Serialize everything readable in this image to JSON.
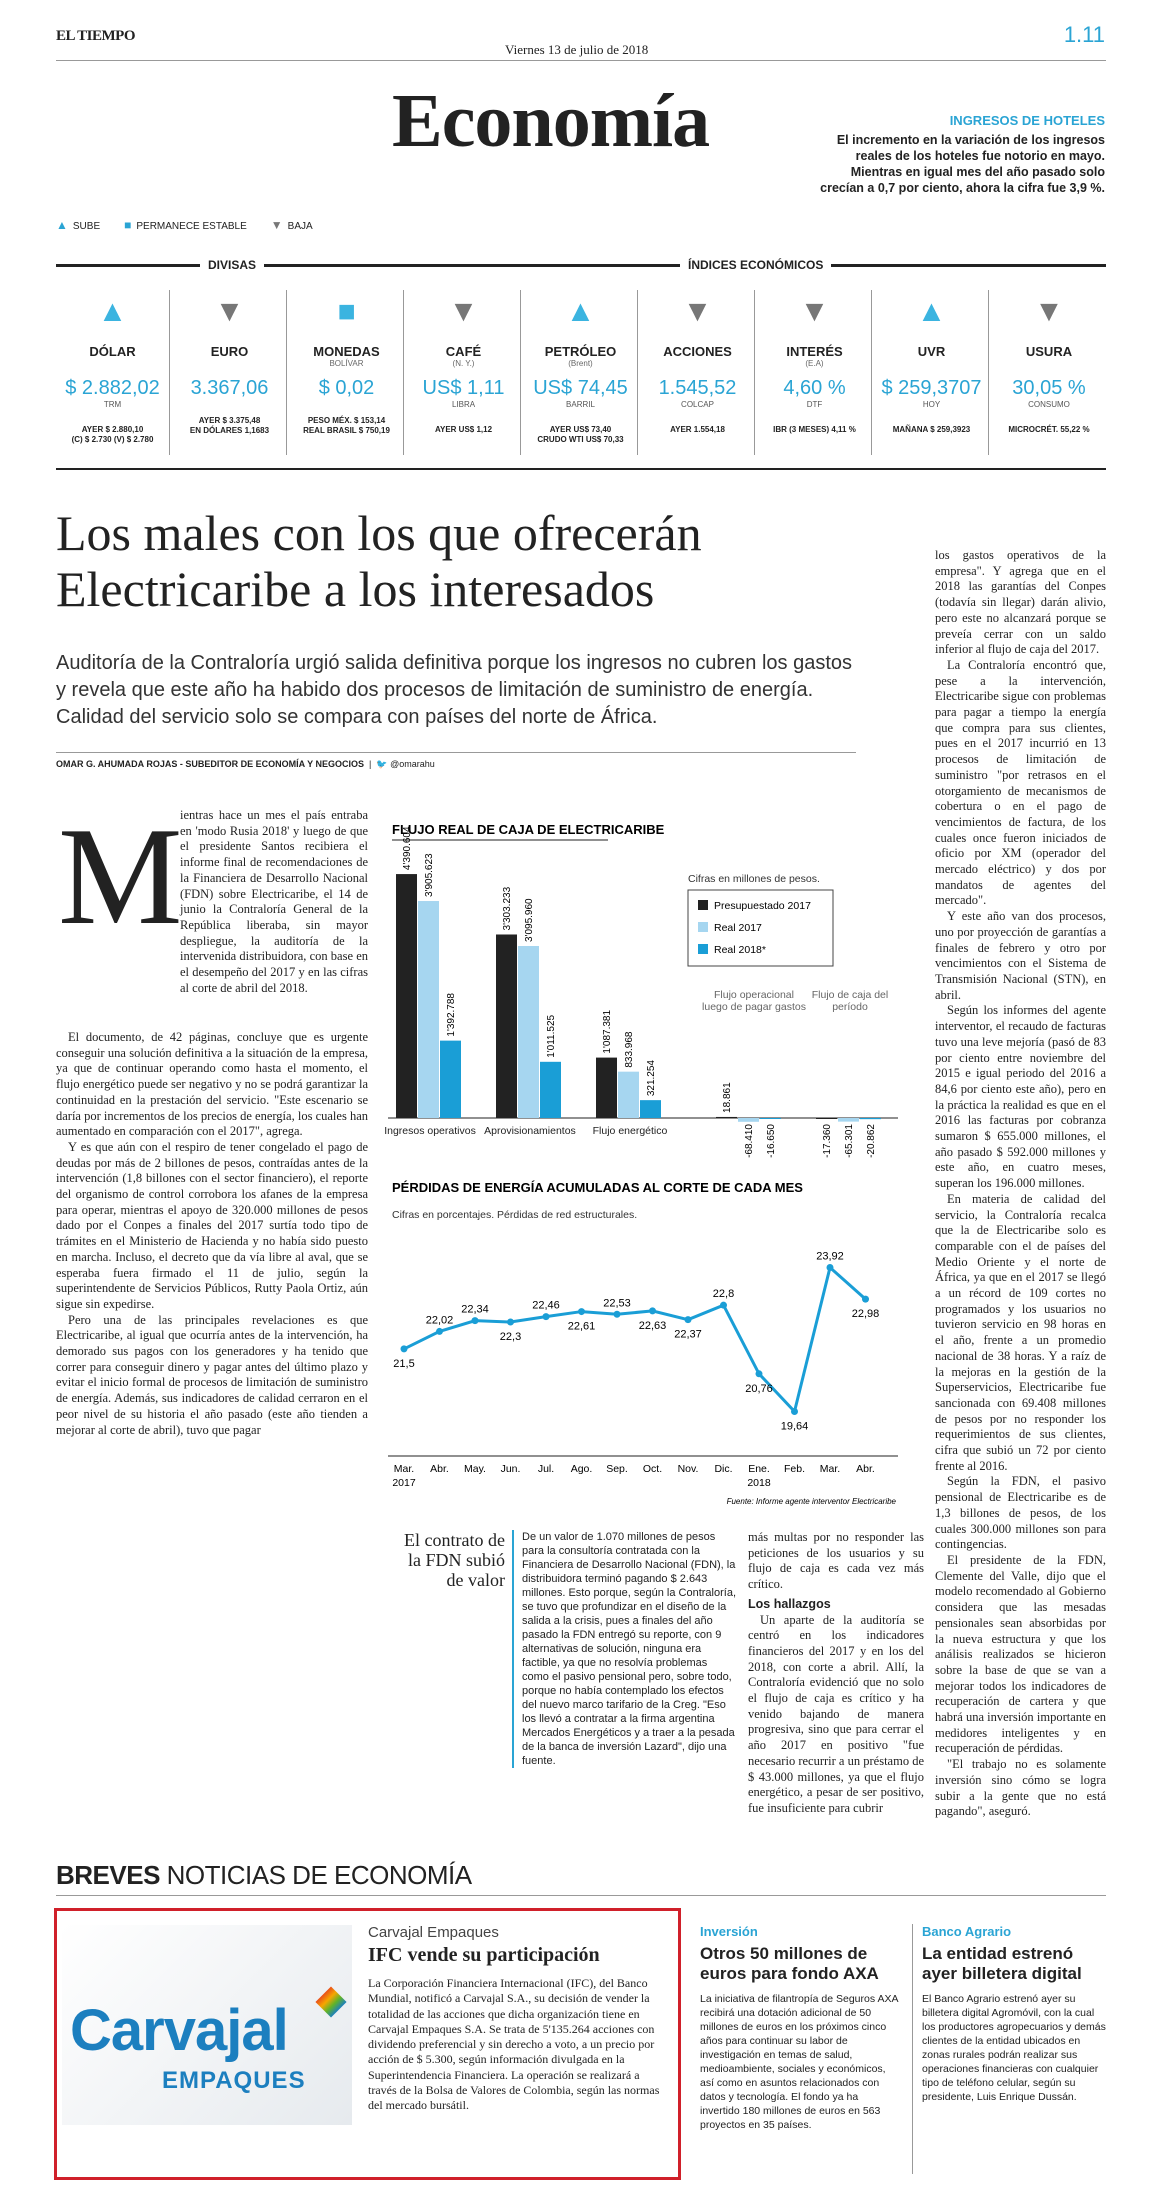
{
  "header": {
    "masthead": "EL TIEMPO",
    "date": "Viernes 13 de julio de 2018",
    "page_number": "1.11",
    "section": "Economía"
  },
  "hotel_box": {
    "title": "INGRESOS DE HOTELES",
    "text": "El incremento en la variación de los ingresos reales de los hoteles fue notorio en mayo. Mientras en igual mes del año pasado solo crecían a 0,7 por ciento, ahora la cifra fue 3,9 %."
  },
  "legend": {
    "up": "SUBE",
    "stable": "PERMANECE ESTABLE",
    "down": "BAJA"
  },
  "group_headers": {
    "divisas": "DIVISAS",
    "indices": "ÍNDICES ECONÓMICOS"
  },
  "indicators": [
    {
      "trend": "up",
      "name": "DÓLAR",
      "sub": "",
      "value": "$ 2.882,02",
      "unit": "TRM",
      "foot1": "AYER $ 2.880,10",
      "foot2": "(C) $ 2.730 (V) $ 2.780"
    },
    {
      "trend": "down",
      "name": "EURO",
      "sub": "",
      "value": "3.367,06",
      "unit": "",
      "foot1": "AYER $ 3.375,48",
      "foot2": "EN DÓLARES 1,1683"
    },
    {
      "trend": "stable",
      "name": "MONEDAS",
      "sub": "BOLÍVAR",
      "value": "$ 0,02",
      "unit": "",
      "foot1": "PESO MÉX. $ 153,14",
      "foot2": "REAL BRASIL $ 750,19"
    },
    {
      "trend": "down",
      "name": "CAFÉ",
      "sub": "(N. Y.)",
      "value": "US$ 1,11",
      "unit": "LIBRA",
      "foot1": "AYER US$ 1,12",
      "foot2": ""
    },
    {
      "trend": "up",
      "name": "PETRÓLEO",
      "sub": "(Brent)",
      "value": "US$ 74,45",
      "unit": "BARRIL",
      "foot1": "AYER US$ 73,40",
      "foot2": "CRUDO WTI US$ 70,33"
    },
    {
      "trend": "down",
      "name": "ACCIONES",
      "sub": "",
      "value": "1.545,52",
      "unit": "COLCAP",
      "foot1": "AYER 1.554,18",
      "foot2": ""
    },
    {
      "trend": "down",
      "name": "INTERÉS",
      "sub": "(E.A)",
      "value": "4,60 %",
      "unit": "DTF",
      "foot1": "IBR (3 MESES) 4,11 %",
      "foot2": ""
    },
    {
      "trend": "up",
      "name": "UVR",
      "sub": "",
      "value": "$ 259,3707",
      "unit": "HOY",
      "foot1": "MAÑANA $ 259,3923",
      "foot2": ""
    },
    {
      "trend": "down",
      "name": "USURA",
      "sub": "",
      "value": "30,05 %",
      "unit": "CONSUMO",
      "foot1": "MICROCRÉT. 55,22 %",
      "foot2": ""
    }
  ],
  "article": {
    "headline": "Los males con los que ofrecerán Electricaribe a los interesados",
    "deck": "Auditoría de la Contraloría urgió salida definitiva porque los ingresos no cubren los gastos y revela que este año ha habido dos procesos de limitación de suministro de energía. Calidad del servicio solo se compara con países del norte de África.",
    "byline": "OMAR G. AHUMADA ROJAS - SUBEDITOR DE ECONOMÍA Y NEGOCIOS",
    "twitter": "@omarahu",
    "dropcap": "M",
    "col1_top": "ientras hace un mes el país entraba en 'modo Rusia 2018' y luego de que el presidente Santos recibiera el informe final de recomendaciones de la Financiera de Desarrollo Nacional (FDN) sobre Electricaribe, el 14 de junio la Contraloría General de la República liberaba, sin mayor despliegue, la auditoría de la intervenida distribuidora, con base en el desempeño del 2017 y en las cifras al corte de abril del 2018.",
    "col1_p2": "El documento, de 42 páginas, concluye que es urgente conseguir una solución definitiva a la situación de la empresa, ya que de continuar operando como hasta el momento, el flujo energético puede ser negativo y no se podrá garantizar la continuidad en la prestación del servicio. \"Este escenario se daría por incrementos de los precios de energía, los cuales han aumentado en comparación con el 2017\", agrega.",
    "col1_p3": "Y es que aún con el respiro de tener congelado el pago de deudas por más de 2 billones de pesos, contraídas antes de la intervención (1,8 billones con el sector financiero), el reporte del organismo de control corrobora los afanes de la empresa para operar, mientras el apoyo de 320.000 millones de pesos dado por el Conpes a finales del 2017 surtía todo tipo de trámites en el Ministerio de Hacienda y no había sido puesto en marcha. Incluso, el decreto que da vía libre al aval, que se esperaba fuera firmado el 11 de julio, según la superintendente de Servicios Públicos, Rutty Paola Ortiz, aún sigue sin expedirse.",
    "col1_p4": "Pero una de las principales revelaciones es que Electricaribe, al igual que ocurría antes de la intervención, ha demorado sus pagos con los generadores y ha tenido que correr para conseguir dinero y pagar antes del último plazo y evitar el inicio formal de procesos de limitación de suministro de energía. Además, sus indicadores de calidad cerraron en el peor nivel de su historia el año pasado (este año tienden a mejorar al corte de abril), tuvo que pagar",
    "colR_p1": "los gastos operativos de la empresa\". Y agrega que en el 2018 las garantías del Conpes (todavía sin llegar) darán alivio, pero este no alcanzará porque se preveía cerrar con un saldo inferior al flujo de caja del 2017.",
    "colR_p2": "La Contraloría encontró que, pese a la intervención, Electricaribe sigue con problemas para pagar a tiempo la energía que compra para sus clientes, pues en el 2017 incurrió en 13 procesos de limitación de suministro \"por retrasos en el otorgamiento de mecanismos de cobertura o en el pago de vencimientos de factura, de los cuales once fueron iniciados de oficio por XM (operador del mercado eléctrico) y dos por mandatos de agentes del mercado\".",
    "colR_p3": "Y este año van dos procesos, uno por proyección de garantías a finales de febrero y otro por vencimientos con el Sistema de Transmisión Nacional (STN), en abril.",
    "colR_p4": "Según los informes del agente interventor, el recaudo de facturas tuvo una leve mejoría (pasó de 83 por ciento entre noviembre del 2015 e igual periodo del 2016 a 84,6 por ciento este año), pero en la práctica la realidad es que en el 2016 las facturas por cobranza sumaron $ 655.000 millones, el año pasado $ 592.000 millones y este año, en cuatro meses, superan los 196.000 millones.",
    "colR_p5": "En materia de calidad del servicio, la Contraloría recalca que la de Electricaribe solo es comparable con el de países del Medio Oriente y el norte de África, ya que en el 2017 se llegó a un récord de 109 cortes no programados y los usuarios no tuvieron servicio en 98 horas en el año, frente a un promedio nacional de 38 horas. Y a raíz de la mejoras en la gestión de la Superservicios, Electricaribe fue sancionada con 69.408 millones de pesos por no responder los requerimientos de sus clientes, cifra que subió un 72 por ciento frente al 2016.",
    "colR_p6": "Según la FDN, el pasivo pensional de Electricaribe es de 1,3 billones de pesos, de los cuales 300.000 millones son para contingencias.",
    "colR_p7": "El presidente de la FDN, Clemente del Valle, dijo que el modelo recomendado al Gobierno considera que las mesadas pensionales sean absorbidas por la nueva estructura y que los análisis realizados se hicieron sobre la base de que se van a mejorar todos los indicadores de recuperación de cartera y que habrá una inversión importante en medidores inteligentes y en recuperación de pérdidas.",
    "colR_p8": "\"El trabajo no es solamente inversión sino cómo se logra subir a la gente que no está pagando\", aseguró.",
    "sidebar_title": "El contrato de la FDN subió de valor",
    "sidebar_text": "De un valor de 1.070 millones de pesos para la consultoría contratada con la Financiera de Desarrollo Nacional (FDN), la distribuidora terminó pagando $ 2.643 millones. Esto porque, según la Contraloría, se tuvo que profundizar en el diseño de la salida a la crisis, pues a finales del año pasado la FDN entregó su reporte, con 9 alternativas de solución, ninguna era factible, ya que no resolvía problemas como el pasivo pensional pero, sobre todo, porque no había contemplado los efectos del nuevo marco tarifario de la Creg. \"Eso los llevó a contratar a la firma argentina Mercados Energéticos y a traer a la pesada de la banca de inversión Lazard\", dijo una fuente.",
    "mid_p1": "más multas por no responder las peticiones de los usuarios y su flujo de caja es cada vez más crítico.",
    "mid_subhead": "Los hallazgos",
    "mid_p2": "Un aparte de la auditoría se centró en los indicadores financieros del 2017 y en los del 2018, con corte a abril. Allí, la Contraloría evidenció que no solo el flujo de caja es crítico y ha venido bajando de manera progresiva, sino que para cerrar el año 2017 en positivo \"fue necesario recurrir a un préstamo de $ 43.000 millones, ya que el flujo energético, a pesar de ser positivo, fue insuficiente para cubrir"
  },
  "chart_data": [
    {
      "type": "bar",
      "title": "FLUJO REAL DE CAJA DE ELECTRICARIBE",
      "note": "Cifras en millones de pesos.",
      "categories": [
        "Ingresos operativos",
        "Aprovisionamientos",
        "Flujo energético",
        "Flujo operacional luego de pagar gastos",
        "Flujo de caja del período"
      ],
      "series": [
        {
          "name": "Presupuestado 2017",
          "color": "#222222",
          "values": [
            4390604,
            3303233,
            1087381,
            18861,
            -17360
          ]
        },
        {
          "name": "Real 2017",
          "color": "#a6d6f0",
          "values": [
            3905623,
            3095960,
            833968,
            -68410,
            -65301
          ]
        },
        {
          "name": "Real 2018*",
          "color": "#1a9ed6",
          "values": [
            1392788,
            1011525,
            321254,
            -16650,
            -20862
          ]
        }
      ],
      "labels": [
        [
          "4'390.604",
          "3'905.623",
          "1'392.788"
        ],
        [
          "3'303.233",
          "3'095.960",
          "1'011.525"
        ],
        [
          "1'087.381",
          "833.968",
          "321.254"
        ],
        [
          "18.861",
          "-68.410",
          "-16.650"
        ],
        [
          "-17.360",
          "-65.301",
          "-20.862"
        ]
      ]
    },
    {
      "type": "line",
      "title": "PÉRDIDAS DE ENERGÍA ACUMULADAS AL CORTE DE CADA MES",
      "note": "Cifras en porcentajes. Pérdidas de red estructurales.",
      "x": [
        "Mar. 2017",
        "Abr.",
        "May.",
        "Jun.",
        "Jul.",
        "Ago.",
        "Sep.",
        "Oct.",
        "Nov.",
        "Dic.",
        "Ene. 2018",
        "Feb.",
        "Mar.",
        "Abr."
      ],
      "values": [
        21.5,
        22.02,
        22.34,
        22.3,
        22.46,
        22.61,
        22.53,
        22.63,
        22.37,
        22.8,
        20.76,
        19.64,
        23.92,
        22.98
      ],
      "labels": [
        "21,5",
        "22,02",
        "22,34",
        "22,3",
        "22,46",
        "22,61",
        "22,53",
        "22,63",
        "22,37",
        "22,8",
        "20,76",
        "19,64",
        "23,92",
        "22,98"
      ],
      "color": "#1a9ed6",
      "source": "Fuente: Informe agente interventor Electricaribe"
    }
  ],
  "breves": {
    "label_bold": "BREVES",
    "label": "NOTICIAS DE ECONOMÍA",
    "main": {
      "kicker": "Carvajal Empaques",
      "title": "IFC vende su participación",
      "logo_line1": "Carvajal",
      "logo_line2": "EMPAQUES",
      "text": "La Corporación Financiera Internacional (IFC), del Banco Mundial, notificó a Carvajal S.A., su decisión de vender la totalidad de las acciones que dicha organización tiene en Carvajal Empaques S.A. Se trata de 5'135.264 acciones con dividendo preferencial y sin derecho a voto, a un precio por acción de $ 5.300, según información divulgada en la Superintendencia Financiera. La operación se realizará a través de la Bolsa de Valores de Colombia, según las normas del mercado bursátil."
    },
    "second": {
      "kicker": "Inversión",
      "title": "Otros 50 millones de euros para fondo AXA",
      "text": "La iniciativa de filantropía de Seguros AXA recibirá una dotación adicional de 50 millones de euros en los próximos cinco años para continuar su labor de investigación en temas de salud, medioambiente, sociales y económicos, así como en asuntos relacionados con datos y tecnología. El fondo ya ha invertido 180 millones de euros en 563 proyectos en 35 países."
    },
    "third": {
      "kicker": "Banco Agrario",
      "title": "La entidad estrenó ayer billetera digital",
      "text": "El Banco Agrario estrenó ayer su billetera digital Agromóvil, con la cual los productores agropecuarios y demás clientes de la entidad ubicados en zonas rurales podrán realizar sus operaciones financieras con cualquier tipo de teléfono celular, según su presidente, Luis Enrique Dussán."
    }
  }
}
